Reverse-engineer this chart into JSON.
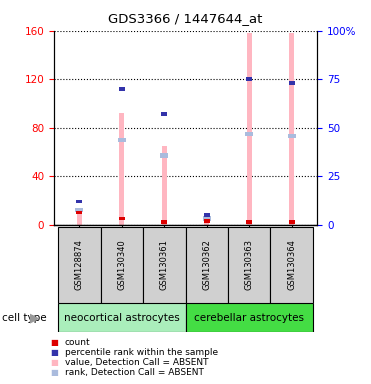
{
  "title": "GDS3366 / 1447644_at",
  "samples": [
    "GSM128874",
    "GSM130340",
    "GSM130361",
    "GSM130362",
    "GSM130363",
    "GSM130364"
  ],
  "value_absent": [
    10.0,
    92.0,
    65.0,
    4.0,
    158.0,
    158.0
  ],
  "rank_absent": [
    12.0,
    70.0,
    57.0,
    5.0,
    75.0,
    73.0
  ],
  "count": [
    10.0,
    5.0,
    2.0,
    3.0,
    2.0,
    2.0
  ],
  "percentile": [
    12.0,
    70.0,
    57.0,
    5.0,
    75.0,
    73.0
  ],
  "ylim_left": [
    0,
    160
  ],
  "ylim_right": [
    0,
    100
  ],
  "yticks_left": [
    0,
    40,
    80,
    120,
    160
  ],
  "yticks_right": [
    0,
    25,
    50,
    75,
    100
  ],
  "ytick_labels_right": [
    "0",
    "25",
    "50",
    "75",
    "100%"
  ],
  "bar_color_absent": "#FFB6C1",
  "rank_color_absent": "#AABBDD",
  "count_color": "#DD0000",
  "percentile_color": "#3333AA",
  "group_spans": [
    {
      "start": 0,
      "end": 2,
      "name": "neocortical astrocytes",
      "color": "#AAEEBB"
    },
    {
      "start": 3,
      "end": 5,
      "name": "cerebellar astrocytes",
      "color": "#44DD44"
    }
  ],
  "legend_items": [
    {
      "label": "count",
      "color": "#DD0000"
    },
    {
      "label": "percentile rank within the sample",
      "color": "#3333AA"
    },
    {
      "label": "value, Detection Call = ABSENT",
      "color": "#FFB6C1"
    },
    {
      "label": "rank, Detection Call = ABSENT",
      "color": "#AABBDD"
    }
  ]
}
